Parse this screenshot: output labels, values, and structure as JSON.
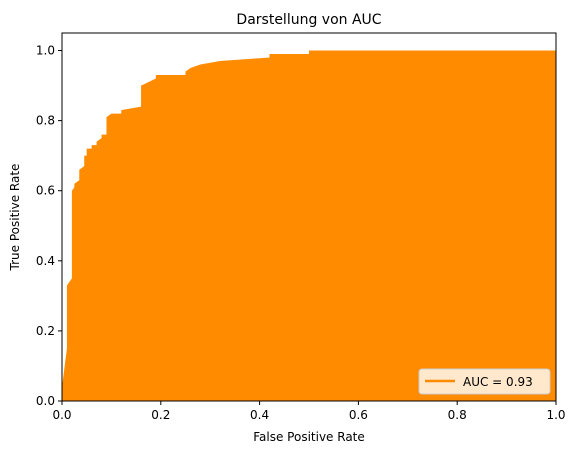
{
  "chart_data": {
    "type": "area",
    "title": "Darstellung von AUC",
    "xlabel": "False Positive Rate",
    "ylabel": "True Positive Rate",
    "xlim": [
      0.0,
      1.0
    ],
    "ylim": [
      0.0,
      1.05
    ],
    "x_ticks": [
      "0.0",
      "0.2",
      "0.4",
      "0.6",
      "0.8",
      "1.0"
    ],
    "y_ticks": [
      "0.0",
      "0.2",
      "0.4",
      "0.6",
      "0.8",
      "1.0"
    ],
    "grid": false,
    "legend": {
      "placement": "lower-right",
      "entries": [
        "AUC = 0.93"
      ]
    },
    "color": "#ff8c00",
    "series": [
      {
        "name": "AUC = 0.93",
        "x": [
          0.0,
          0.0,
          0.01,
          0.01,
          0.02,
          0.02,
          0.025,
          0.025,
          0.035,
          0.035,
          0.045,
          0.045,
          0.05,
          0.05,
          0.06,
          0.06,
          0.07,
          0.07,
          0.08,
          0.08,
          0.09,
          0.09,
          0.1,
          0.1,
          0.12,
          0.12,
          0.16,
          0.16,
          0.19,
          0.19,
          0.25,
          0.25,
          0.26,
          0.26,
          0.28,
          0.28,
          0.32,
          0.32,
          0.42,
          0.42,
          0.5,
          0.5,
          1.0
        ],
        "y": [
          0.0,
          0.04,
          0.15,
          0.33,
          0.35,
          0.6,
          0.61,
          0.62,
          0.63,
          0.66,
          0.67,
          0.7,
          0.7,
          0.72,
          0.72,
          0.73,
          0.73,
          0.74,
          0.75,
          0.76,
          0.76,
          0.81,
          0.82,
          0.82,
          0.82,
          0.83,
          0.84,
          0.9,
          0.92,
          0.93,
          0.93,
          0.94,
          0.95,
          0.95,
          0.96,
          0.96,
          0.97,
          0.97,
          0.98,
          0.99,
          0.99,
          1.0,
          1.0
        ]
      }
    ]
  }
}
